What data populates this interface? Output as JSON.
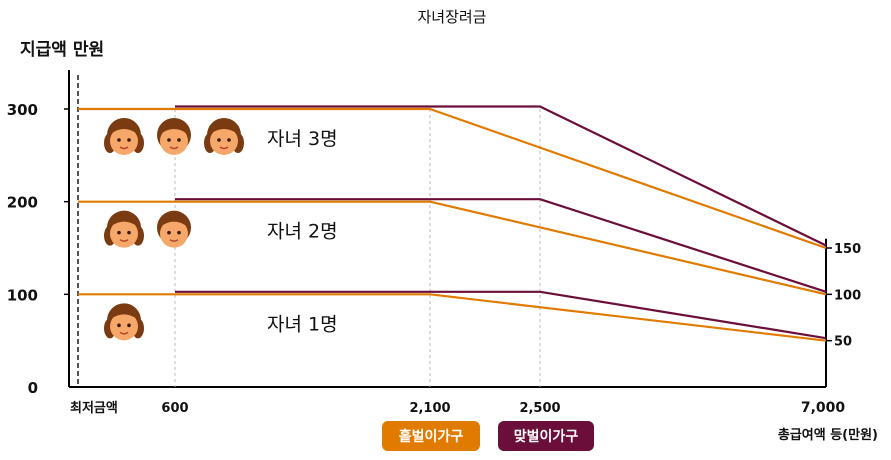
{
  "colors": {
    "single": "#E07B00",
    "dual": "#6B0F3A",
    "axis": "#000000",
    "guide": "#bbbbbb"
  },
  "chart_data": {
    "type": "line",
    "title": "자녀장려금",
    "ylabel": "지급액 만원",
    "xlabel": "총급여액 등(만원)",
    "x_origin_label": "최저금액",
    "x_ticks": [
      {
        "value": 600,
        "label": "600"
      },
      {
        "value": 2100,
        "label": "2,100"
      },
      {
        "value": 2500,
        "label": "2,500"
      },
      {
        "value": 7000,
        "label": "7,000"
      }
    ],
    "y_ticks": [
      0,
      100,
      200,
      300
    ],
    "right_ticks": [
      {
        "value": 150,
        "label": "150"
      },
      {
        "value": 100,
        "label": "100"
      },
      {
        "value": 50,
        "label": "50"
      }
    ],
    "ylim": [
      0,
      300
    ],
    "grid": false,
    "series": [
      {
        "name": "홑벌이가구",
        "color_key": "single",
        "group": "자녀 3명",
        "points": [
          [
            0,
            300
          ],
          [
            2100,
            300
          ],
          [
            7000,
            150
          ]
        ]
      },
      {
        "name": "홑벌이가구",
        "color_key": "single",
        "group": "자녀 2명",
        "points": [
          [
            0,
            200
          ],
          [
            2100,
            200
          ],
          [
            7000,
            100
          ]
        ]
      },
      {
        "name": "홑벌이가구",
        "color_key": "single",
        "group": "자녀 1명",
        "points": [
          [
            0,
            100
          ],
          [
            2100,
            100
          ],
          [
            7000,
            50
          ]
        ]
      },
      {
        "name": "맞벌이가구",
        "color_key": "dual",
        "group": "자녀 3명",
        "points": [
          [
            600,
            300
          ],
          [
            2500,
            300
          ],
          [
            7000,
            150
          ]
        ]
      },
      {
        "name": "맞벌이가구",
        "color_key": "dual",
        "group": "자녀 2명",
        "points": [
          [
            600,
            200
          ],
          [
            2500,
            200
          ],
          [
            7000,
            100
          ]
        ]
      },
      {
        "name": "맞벌이가구",
        "color_key": "dual",
        "group": "자녀 1명",
        "points": [
          [
            600,
            100
          ],
          [
            2500,
            100
          ],
          [
            7000,
            50
          ]
        ]
      }
    ],
    "annotations": [
      {
        "text": "자녀 3명",
        "children": 3,
        "level": 300
      },
      {
        "text": "자녀 2명",
        "children": 2,
        "level": 200
      },
      {
        "text": "자녀 1명",
        "children": 1,
        "level": 100
      }
    ],
    "legend": [
      {
        "label": "홑벌이가구",
        "color_key": "single"
      },
      {
        "label": "맞벌이가구",
        "color_key": "dual"
      }
    ],
    "legend_position": "bottom-center"
  }
}
